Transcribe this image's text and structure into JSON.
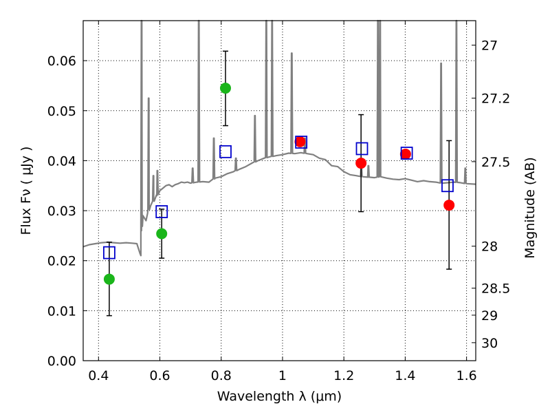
{
  "chart_data": {
    "type": "scatter",
    "xlabel": "Wavelength  λ (μm)",
    "ylabel": "Flux  Fν  ( μJy )",
    "ylabel_right": "Magnitude (AB)",
    "xlim": [
      0.35,
      1.63
    ],
    "ylim": [
      0.0,
      0.068
    ],
    "grid": true,
    "x_ticks": [
      {
        "value": 0.4,
        "label": "0.4"
      },
      {
        "value": 0.6,
        "label": "0.6"
      },
      {
        "value": 0.8,
        "label": "0.8"
      },
      {
        "value": 1.0,
        "label": "1"
      },
      {
        "value": 1.2,
        "label": "1.2"
      },
      {
        "value": 1.4,
        "label": "1.4"
      },
      {
        "value": 1.6,
        "label": "1.6"
      }
    ],
    "y_ticks": [
      {
        "value": 0.0,
        "label": "0.00"
      },
      {
        "value": 0.01,
        "label": "0.01"
      },
      {
        "value": 0.02,
        "label": "0.02"
      },
      {
        "value": 0.03,
        "label": "0.03"
      },
      {
        "value": 0.04,
        "label": "0.04"
      },
      {
        "value": 0.05,
        "label": "0.05"
      },
      {
        "value": 0.06,
        "label": "0.06"
      }
    ],
    "right_ticks": [
      {
        "flux": 0.0631,
        "label": "27"
      },
      {
        "flux": 0.0525,
        "label": "27.2"
      },
      {
        "flux": 0.0398,
        "label": "27.5"
      },
      {
        "flux": 0.0229,
        "label": "28"
      },
      {
        "flux": 0.0145,
        "label": "28.5"
      },
      {
        "flux": 0.0091,
        "label": "29"
      },
      {
        "flux": 0.0036,
        "label": "30"
      }
    ],
    "sed_model": {
      "color": "#808080",
      "x": [
        0.35,
        0.37,
        0.39,
        0.41,
        0.43,
        0.45,
        0.47,
        0.49,
        0.51,
        0.525,
        0.535,
        0.538,
        0.54,
        0.542,
        0.545,
        0.55,
        0.555,
        0.56,
        0.565,
        0.57,
        0.58,
        0.59,
        0.6,
        0.61,
        0.62,
        0.63,
        0.64,
        0.65,
        0.66,
        0.67,
        0.68,
        0.69,
        0.7,
        0.71,
        0.72,
        0.74,
        0.76,
        0.78,
        0.8,
        0.82,
        0.84,
        0.86,
        0.88,
        0.9,
        0.92,
        0.94,
        0.96,
        0.98,
        1.0,
        1.02,
        1.04,
        1.06,
        1.08,
        1.1,
        1.12,
        1.14,
        1.16,
        1.18,
        1.2,
        1.22,
        1.24,
        1.26,
        1.28,
        1.3,
        1.32,
        1.34,
        1.36,
        1.38,
        1.4,
        1.42,
        1.44,
        1.46,
        1.48,
        1.5,
        1.52,
        1.54,
        1.56,
        1.58,
        1.6,
        1.63
      ],
      "y": [
        0.0228,
        0.0232,
        0.0234,
        0.0236,
        0.0237,
        0.0236,
        0.0235,
        0.0236,
        0.0235,
        0.0234,
        0.0215,
        0.021,
        0.026,
        0.0295,
        0.029,
        0.0285,
        0.028,
        0.0295,
        0.0305,
        0.031,
        0.032,
        0.033,
        0.034,
        0.0345,
        0.035,
        0.0352,
        0.0348,
        0.0352,
        0.0354,
        0.0357,
        0.0356,
        0.0357,
        0.0355,
        0.0356,
        0.0357,
        0.0358,
        0.0357,
        0.0365,
        0.0368,
        0.0374,
        0.0378,
        0.0383,
        0.0388,
        0.0395,
        0.04,
        0.0405,
        0.0408,
        0.041,
        0.0412,
        0.0415,
        0.0414,
        0.0416,
        0.0414,
        0.0412,
        0.0405,
        0.0402,
        0.039,
        0.0388,
        0.0378,
        0.0372,
        0.037,
        0.0368,
        0.0367,
        0.0366,
        0.0368,
        0.0365,
        0.0363,
        0.0362,
        0.0364,
        0.0361,
        0.0358,
        0.036,
        0.0358,
        0.0357,
        0.0355,
        0.0356,
        0.0357,
        0.0356,
        0.0354,
        0.0353
      ],
      "emission_lines": [
        {
          "x": 0.5405,
          "peak": 0.068
        },
        {
          "x": 0.5635,
          "peak": 0.0525
        },
        {
          "x": 0.579,
          "peak": 0.037
        },
        {
          "x": 0.592,
          "peak": 0.038
        },
        {
          "x": 0.707,
          "peak": 0.0385
        },
        {
          "x": 0.727,
          "peak": 0.068
        },
        {
          "x": 0.776,
          "peak": 0.0445
        },
        {
          "x": 0.848,
          "peak": 0.0405
        },
        {
          "x": 0.91,
          "peak": 0.049
        },
        {
          "x": 0.947,
          "peak": 0.068
        },
        {
          "x": 0.966,
          "peak": 0.068
        },
        {
          "x": 1.03,
          "peak": 0.0615
        },
        {
          "x": 1.073,
          "peak": 0.0445
        },
        {
          "x": 1.257,
          "peak": 0.0395
        },
        {
          "x": 1.28,
          "peak": 0.039
        },
        {
          "x": 1.311,
          "peak": 0.068
        },
        {
          "x": 1.318,
          "peak": 0.068
        },
        {
          "x": 1.517,
          "peak": 0.0595
        },
        {
          "x": 1.567,
          "peak": 0.068
        },
        {
          "x": 1.596,
          "peak": 0.0385
        }
      ]
    },
    "series": [
      {
        "marker": "circle",
        "color": "#1ab51a",
        "points": [
          {
            "x": 0.435,
            "y": 0.0163,
            "err_lo": 0.009,
            "err_hi": 0.0237
          },
          {
            "x": 0.606,
            "y": 0.0254,
            "err_lo": 0.0205,
            "err_hi": 0.0303
          },
          {
            "x": 0.814,
            "y": 0.0545,
            "err_lo": 0.047,
            "err_hi": 0.0619
          }
        ]
      },
      {
        "marker": "circle",
        "color": "#ff0000",
        "points": [
          {
            "x": 1.057,
            "y": 0.0438,
            "err_lo": null,
            "err_hi": null
          },
          {
            "x": 1.256,
            "y": 0.0395,
            "err_lo": 0.0298,
            "err_hi": 0.0492
          },
          {
            "x": 1.401,
            "y": 0.0413,
            "err_lo": null,
            "err_hi": null
          },
          {
            "x": 1.543,
            "y": 0.0311,
            "err_lo": 0.0183,
            "err_hi": 0.044
          }
        ]
      },
      {
        "marker": "open-square",
        "color": "#0000cc",
        "points": [
          {
            "x": 0.435,
            "y": 0.0216
          },
          {
            "x": 0.606,
            "y": 0.0298
          },
          {
            "x": 0.814,
            "y": 0.0418
          },
          {
            "x": 1.061,
            "y": 0.0437
          },
          {
            "x": 1.259,
            "y": 0.0424
          },
          {
            "x": 1.405,
            "y": 0.0415
          },
          {
            "x": 1.538,
            "y": 0.035
          }
        ]
      }
    ]
  }
}
